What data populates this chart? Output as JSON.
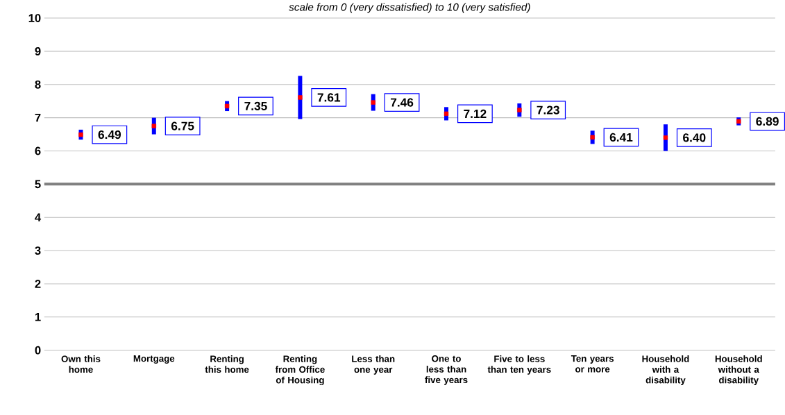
{
  "chart_data": {
    "type": "scatter",
    "subtitle": "scale from 0 (very dissatisfied) to 10 (very satisfied)",
    "categories": [
      "Own this home",
      "Mortgage",
      "Renting this home",
      "Renting from Office of Housing",
      "Less than one year",
      "One to less than five years",
      "Five to less than ten years",
      "Ten years or more",
      "Household with a disability",
      "Household without a disability"
    ],
    "series": [
      {
        "color": "#ff0000",
        "values": [
          6.49,
          6.75,
          7.35,
          7.61,
          7.46,
          7.12,
          7.23,
          6.41,
          6.4,
          6.89
        ],
        "errors": [
          0.15,
          0.25,
          0.15,
          0.65,
          0.25,
          0.2,
          0.2,
          0.2,
          0.4,
          0.12
        ],
        "value_labels": [
          "6.49",
          "6.75",
          "7.35",
          "7.61",
          "7.46",
          "7.12",
          "7.23",
          "6.41",
          "6.40",
          "6.89"
        ]
      }
    ],
    "ylim": [
      0,
      10
    ],
    "yticks": [
      0,
      1,
      2,
      3,
      4,
      5,
      6,
      7,
      8,
      9,
      10
    ],
    "grid": "y",
    "marker": "square",
    "ref_lines": [
      {
        "axis": "y",
        "value": 5,
        "color": "#808080"
      }
    ]
  }
}
